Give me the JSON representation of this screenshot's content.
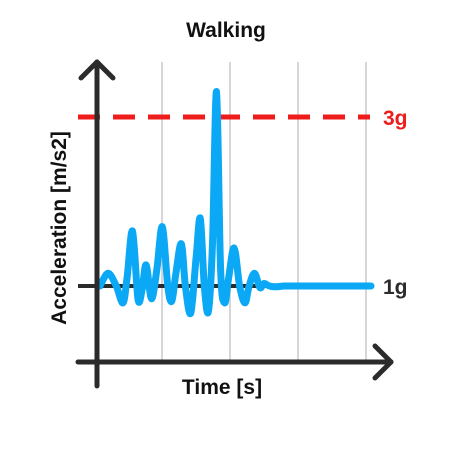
{
  "chart_data": {
    "type": "line",
    "title": "Walking",
    "xlabel": "Time [s]",
    "ylabel": "Acceleration [m/s2]",
    "grid": "vertical",
    "reference_lines": [
      {
        "label": "3g",
        "value": 3,
        "style": "dashed",
        "color": "#ef1c1c"
      },
      {
        "label": "1g",
        "value": 1,
        "style": "solid",
        "color": "#2b2b2b"
      }
    ],
    "series": [
      {
        "color": "#0aa8f5",
        "x": [
          0.0,
          0.12,
          0.24,
          0.34,
          0.4,
          0.48,
          0.56,
          0.62,
          0.68,
          0.76,
          0.84,
          0.92,
          1.0,
          1.06,
          1.12,
          1.2,
          1.26,
          1.34,
          1.42,
          1.48,
          1.54,
          1.6,
          1.66,
          1.72,
          1.78,
          1.84,
          1.9,
          1.98,
          2.06,
          2.14,
          2.2,
          2.28,
          2.36,
          2.42,
          2.5,
          2.6,
          2.72,
          2.84,
          3.0,
          3.2,
          3.4,
          3.6,
          3.8,
          4.0
        ],
        "y": [
          1.0,
          1.15,
          1.0,
          0.8,
          1.1,
          1.65,
          0.85,
          0.95,
          1.25,
          0.85,
          1.2,
          1.7,
          1.0,
          0.82,
          1.15,
          1.5,
          1.0,
          0.68,
          1.35,
          1.8,
          1.0,
          0.7,
          1.5,
          3.3,
          1.2,
          0.8,
          1.1,
          1.45,
          1.0,
          0.8,
          1.0,
          1.15,
          0.98,
          1.03,
          1.0,
          0.99,
          1.0,
          1.0,
          1.0,
          1.0,
          1.0,
          1.0,
          1.0,
          1.0
        ]
      }
    ]
  }
}
